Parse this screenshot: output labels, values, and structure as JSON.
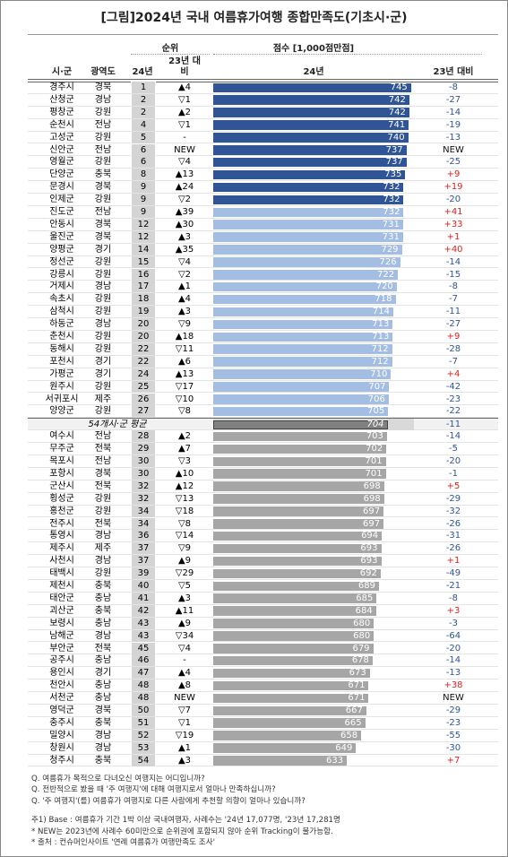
{
  "title": "[그림]2024년 국내 여름휴가여행 종합만족도(기초시·군)",
  "header": {
    "rank_group": "순위",
    "score_group": "점수 [1,000점만점]",
    "city": "시·군",
    "province": "광역도",
    "rank_24": "24년",
    "rank_change": "23년 대비",
    "score_24": "24년",
    "score_change": "23년 대비"
  },
  "scale": {
    "xlim": [
      400,
      750
    ]
  },
  "sections": [
    {
      "color": "#2f5597",
      "rows": [
        [
          "경주시",
          "경북",
          "1",
          "▲4",
          745,
          "-8"
        ],
        [
          "산청군",
          "경남",
          "2",
          "▽1",
          742,
          "-27"
        ],
        [
          "평창군",
          "강원",
          "2",
          "▲2",
          742,
          "-14"
        ],
        [
          "순천시",
          "전남",
          "4",
          "▽1",
          741,
          "-19"
        ],
        [
          "고성군",
          "강원",
          "5",
          "-",
          740,
          "-13"
        ],
        [
          "신안군",
          "전남",
          "6",
          "NEW",
          737,
          "NEW"
        ],
        [
          "영월군",
          "강원",
          "6",
          "▽4",
          737,
          "-25"
        ],
        [
          "단양군",
          "충북",
          "8",
          "▲13",
          735,
          "+9"
        ],
        [
          "문경시",
          "경북",
          "9",
          "▲24",
          732,
          "+19"
        ],
        [
          "인제군",
          "강원",
          "9",
          "▽2",
          732,
          "-20"
        ]
      ]
    },
    {
      "color": "#a4bde3",
      "rows": [
        [
          "진도군",
          "전남",
          "9",
          "▲39",
          732,
          "+41"
        ],
        [
          "안동시",
          "경북",
          "12",
          "▲30",
          731,
          "+33"
        ],
        [
          "울진군",
          "경북",
          "12",
          "▲3",
          731,
          "+1"
        ],
        [
          "양평군",
          "경기",
          "14",
          "▲35",
          729,
          "+40"
        ],
        [
          "정선군",
          "강원",
          "15",
          "▽4",
          726,
          "-14"
        ],
        [
          "강릉시",
          "강원",
          "16",
          "▽2",
          722,
          "-15"
        ],
        [
          "거제시",
          "경남",
          "17",
          "▲1",
          720,
          "-8"
        ],
        [
          "속초시",
          "강원",
          "18",
          "▲4",
          718,
          "-7"
        ],
        [
          "삼척시",
          "강원",
          "19",
          "▲3",
          714,
          "-11"
        ],
        [
          "하동군",
          "경남",
          "20",
          "▽9",
          713,
          "-27"
        ],
        [
          "춘천시",
          "강원",
          "20",
          "▲18",
          713,
          "+9"
        ],
        [
          "동해시",
          "강원",
          "22",
          "▽11",
          712,
          "-28"
        ],
        [
          "포천시",
          "경기",
          "22",
          "▲6",
          712,
          "-7"
        ],
        [
          "가평군",
          "경기",
          "24",
          "▲13",
          710,
          "+4"
        ],
        [
          "원주시",
          "강원",
          "25",
          "▽17",
          707,
          "-42"
        ],
        [
          "서귀포시",
          "제주",
          "26",
          "▽10",
          706,
          "-23"
        ],
        [
          "양양군",
          "강원",
          "27",
          "▽8",
          705,
          "-22"
        ]
      ]
    },
    {
      "color": "#808080",
      "label": "54개시·군 평균",
      "score": 704,
      "diff": "-11"
    },
    {
      "color": "#a6a6a6",
      "rows": [
        [
          "여수시",
          "전남",
          "28",
          "▲2",
          703,
          "-14"
        ],
        [
          "무주군",
          "전북",
          "29",
          "▲7",
          702,
          "-5"
        ],
        [
          "목포시",
          "전남",
          "30",
          "▽3",
          701,
          "-20"
        ],
        [
          "포항시",
          "경북",
          "30",
          "▲10",
          701,
          "-1"
        ],
        [
          "군산시",
          "전북",
          "32",
          "▲12",
          698,
          "+5"
        ],
        [
          "횡성군",
          "강원",
          "32",
          "▽13",
          698,
          "-29"
        ],
        [
          "홍천군",
          "강원",
          "34",
          "▽18",
          697,
          "-32"
        ],
        [
          "전주시",
          "전북",
          "34",
          "▽8",
          697,
          "-26"
        ],
        [
          "통영시",
          "경남",
          "36",
          "▽14",
          694,
          "-31"
        ],
        [
          "제주시",
          "제주",
          "37",
          "▽9",
          693,
          "-26"
        ],
        [
          "사천시",
          "경남",
          "37",
          "▲9",
          693,
          "+1"
        ],
        [
          "태백시",
          "강원",
          "39",
          "▽29",
          692,
          "-49"
        ],
        [
          "제천시",
          "충북",
          "40",
          "▽5",
          689,
          "-21"
        ],
        [
          "태안군",
          "충남",
          "41",
          "▲3",
          685,
          "-8"
        ],
        [
          "괴산군",
          "충북",
          "42",
          "▲11",
          684,
          "+3"
        ],
        [
          "보령시",
          "충남",
          "43",
          "▲9",
          680,
          "-3"
        ],
        [
          "남해군",
          "경남",
          "43",
          "▽34",
          680,
          "-64"
        ],
        [
          "부안군",
          "전북",
          "45",
          "▽4",
          679,
          "-20"
        ],
        [
          "공주시",
          "충남",
          "46",
          "-",
          678,
          "-14"
        ],
        [
          "용인시",
          "경기",
          "47",
          "▲4",
          673,
          "-13"
        ],
        [
          "천안시",
          "충남",
          "48",
          "▲8",
          671,
          "+38"
        ],
        [
          "서천군",
          "충남",
          "48",
          "NEW",
          671,
          "NEW"
        ],
        [
          "영덕군",
          "경북",
          "50",
          "▽7",
          667,
          "-29"
        ],
        [
          "충주시",
          "충북",
          "51",
          "▽1",
          665,
          "-23"
        ],
        [
          "밀양시",
          "경남",
          "52",
          "▽19",
          658,
          "-55"
        ],
        [
          "창원시",
          "경남",
          "53",
          "▲1",
          649,
          "-30"
        ],
        [
          "청주시",
          "충북",
          "54",
          "▲3",
          633,
          "+7"
        ]
      ]
    }
  ],
  "notes": [
    "Q. 여름휴가 목적으로 다녀오신 여행지는 어디입니까?",
    "Q. 전반적으로 봤을 때 '주 여행지'에 대해 여행지로서 얼마나 만족하십니까?",
    "Q. '주 여행지'(를) 여름휴가 여행지로 다른 사람에게 추천할 의향이 얼마나 있습니까?"
  ],
  "footnotes": [
    "주1) Base : 여름휴가 기간 1박 이상 국내여행자, 사례수는 '24년 17,077명, '23년 17,281명",
    "* NEW는 2023년에 사례수 60미만으로 순위권에 포함되지 않아 순위 Tracking이 불가능함.",
    "* 출처 : 컨슈머인사이트 '연례 여름휴가 여행만족도 조사'"
  ]
}
